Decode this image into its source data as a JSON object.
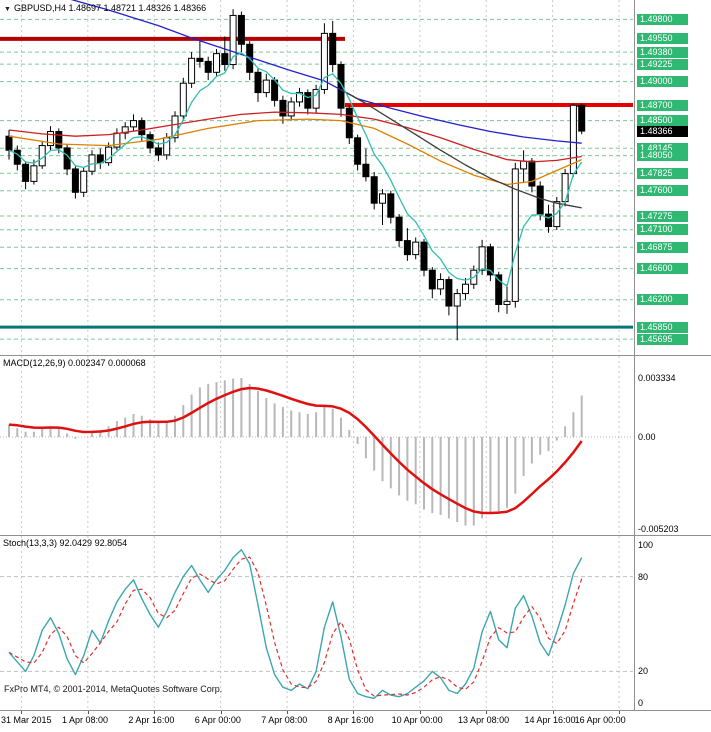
{
  "header": {
    "title": "GBPUSD,H4 1.48697 1.48721 1.48326 1.48366",
    "symbol": "GBPUSD",
    "timeframe": "H4",
    "open": "1.48697",
    "high": "1.48721",
    "low": "1.48326",
    "close": "1.48366"
  },
  "footer": {
    "copyright": "FxPro MT4, © 2001-2014, MetaQuotes Software Corp."
  },
  "time_axis": [
    "31 Mar 2015",
    "1 Apr 08:00",
    "2 Apr 16:00",
    "6 Apr 00:00",
    "7 Apr 08:00",
    "8 Apr 16:00",
    "10 Apr 00:00",
    "13 Apr 08:00",
    "14 Apr 16:00",
    "16 Apr 00:00"
  ],
  "chart_data": [
    {
      "type": "candlestick",
      "title": "GBPUSD,H4",
      "ylim": [
        1.4553,
        1.4992
      ],
      "grid_color": "#C9C9C9",
      "up_color": "#FFFFFF",
      "down_color": "#000000",
      "current_price": "1.48366",
      "candles": [
        [
          1.483,
          1.4838,
          1.48,
          1.4812
        ],
        [
          1.4812,
          1.4818,
          1.4786,
          1.4794
        ],
        [
          1.4794,
          1.4798,
          1.4762,
          1.4772
        ],
        [
          1.4772,
          1.48,
          1.4768,
          1.4792
        ],
        [
          1.4792,
          1.4824,
          1.4788,
          1.4818
        ],
        [
          1.4818,
          1.4843,
          1.4812,
          1.4836
        ],
        [
          1.4836,
          1.484,
          1.4808,
          1.4815
        ],
        [
          1.4815,
          1.482,
          1.478,
          1.4788
        ],
        [
          1.4788,
          1.4792,
          1.475,
          1.4758
        ],
        [
          1.4758,
          1.479,
          1.4752,
          1.4785
        ],
        [
          1.4785,
          1.4812,
          1.478,
          1.4806
        ],
        [
          1.4806,
          1.4814,
          1.4788,
          1.4796
        ],
        [
          1.4796,
          1.4822,
          1.4792,
          1.4816
        ],
        [
          1.4816,
          1.484,
          1.4812,
          1.4834
        ],
        [
          1.4834,
          1.4848,
          1.4826,
          1.4842
        ],
        [
          1.4842,
          1.4858,
          1.4836,
          1.485
        ],
        [
          1.485,
          1.4854,
          1.4824,
          1.4832
        ],
        [
          1.4832,
          1.4836,
          1.4808,
          1.4815
        ],
        [
          1.4815,
          1.4822,
          1.4798,
          1.4806
        ],
        [
          1.4806,
          1.4834,
          1.48,
          1.4828
        ],
        [
          1.4828,
          1.4862,
          1.4822,
          1.4856
        ],
        [
          1.4856,
          1.4905,
          1.485,
          1.4898
        ],
        [
          1.4898,
          1.4938,
          1.4892,
          1.493
        ],
        [
          1.493,
          1.4952,
          1.4918,
          1.4926
        ],
        [
          1.4926,
          1.4932,
          1.4902,
          1.4912
        ],
        [
          1.4912,
          1.4942,
          1.4906,
          1.4936
        ],
        [
          1.4936,
          1.4958,
          1.4914,
          1.4922
        ],
        [
          1.4922,
          1.4993,
          1.4916,
          1.4985
        ],
        [
          1.4985,
          1.499,
          1.4938,
          1.4948
        ],
        [
          1.4948,
          1.4952,
          1.4902,
          1.4912
        ],
        [
          1.4912,
          1.4918,
          1.4874,
          1.4886
        ],
        [
          1.4886,
          1.491,
          1.488,
          1.4902
        ],
        [
          1.4902,
          1.4906,
          1.4868,
          1.4876
        ],
        [
          1.4876,
          1.4882,
          1.4846,
          1.4856
        ],
        [
          1.4856,
          1.488,
          1.485,
          1.4874
        ],
        [
          1.4874,
          1.4892,
          1.4868,
          1.4886
        ],
        [
          1.4886,
          1.489,
          1.4858,
          1.4866
        ],
        [
          1.4866,
          1.4896,
          1.486,
          1.489
        ],
        [
          1.489,
          1.4975,
          1.4884,
          1.4962
        ],
        [
          1.4962,
          1.4978,
          1.4912,
          1.4922
        ],
        [
          1.4922,
          1.4926,
          1.4855,
          1.4866
        ],
        [
          1.4866,
          1.487,
          1.482,
          1.4828
        ],
        [
          1.4828,
          1.4832,
          1.4786,
          1.4794
        ],
        [
          1.4794,
          1.4814,
          1.4772,
          1.4778
        ],
        [
          1.4778,
          1.4784,
          1.4736,
          1.4744
        ],
        [
          1.4744,
          1.4762,
          1.4716,
          1.4756
        ],
        [
          1.4756,
          1.476,
          1.4718,
          1.4726
        ],
        [
          1.4726,
          1.473,
          1.4688,
          1.4696
        ],
        [
          1.4696,
          1.4712,
          1.467,
          1.4678
        ],
        [
          1.4678,
          1.47,
          1.4672,
          1.4694
        ],
        [
          1.4694,
          1.4698,
          1.465,
          1.4658
        ],
        [
          1.4658,
          1.4662,
          1.4622,
          1.4634
        ],
        [
          1.4634,
          1.4654,
          1.4626,
          1.4646
        ],
        [
          1.4646,
          1.465,
          1.46,
          1.4612
        ],
        [
          1.4612,
          1.4634,
          1.4568,
          1.4628
        ],
        [
          1.4628,
          1.4648,
          1.462,
          1.464
        ],
        [
          1.464,
          1.4664,
          1.4634,
          1.4658
        ],
        [
          1.4658,
          1.4697,
          1.4652,
          1.4688
        ],
        [
          1.4688,
          1.4692,
          1.4644,
          1.4652
        ],
        [
          1.4652,
          1.4656,
          1.4604,
          1.4614
        ],
        [
          1.4614,
          1.464,
          1.4602,
          1.4618
        ],
        [
          1.4618,
          1.4796,
          1.461,
          1.4788
        ],
        [
          1.4788,
          1.4812,
          1.477,
          1.4798
        ],
        [
          1.4798,
          1.4802,
          1.4758,
          1.4766
        ],
        [
          1.4766,
          1.4772,
          1.4722,
          1.473
        ],
        [
          1.473,
          1.4742,
          1.4706,
          1.4714
        ],
        [
          1.4714,
          1.4752,
          1.471,
          1.4746
        ],
        [
          1.4746,
          1.4788,
          1.474,
          1.4782
        ],
        [
          1.4782,
          1.4872,
          1.4778,
          1.48697
        ],
        [
          1.48697,
          1.48721,
          1.48326,
          1.48366
        ]
      ],
      "price_levels": [
        {
          "label": "1.49800",
          "value": 1.498,
          "line": "dashed"
        },
        {
          "label": "1.49550",
          "value": 1.4955,
          "line": "resistance",
          "color": "#B40000",
          "frac": [
            0,
            0.545
          ]
        },
        {
          "label": "1.49380",
          "value": 1.4938,
          "line": "dashed"
        },
        {
          "label": "1.49225",
          "value": 1.49225,
          "line": "dashed"
        },
        {
          "label": "1.49000",
          "value": 1.49,
          "line": "dashed"
        },
        {
          "label": "1.48700",
          "value": 1.487,
          "line": "resistance",
          "color": "#E60000",
          "frac": [
            0.545,
            1
          ]
        },
        {
          "label": "1.48500",
          "value": 1.485,
          "line": "dashed"
        },
        {
          "label": "1.48366",
          "value": 1.48366,
          "line": "current"
        },
        {
          "label": "1.48145",
          "value": 1.48145,
          "line": "dashed"
        },
        {
          "label": "1.48050",
          "value": 1.4805,
          "line": "dashed"
        },
        {
          "label": "1.47825",
          "value": 1.47825,
          "line": "dashed"
        },
        {
          "label": "1.47600",
          "value": 1.476,
          "line": "dashed"
        },
        {
          "label": "1.47275",
          "value": 1.47275,
          "line": "dashed"
        },
        {
          "label": "1.47100",
          "value": 1.471,
          "line": "dashed"
        },
        {
          "label": "1.46875",
          "value": 1.46875,
          "line": "dashed"
        },
        {
          "label": "1.46600",
          "value": 1.466,
          "line": "dashed"
        },
        {
          "label": "1.46200",
          "value": 1.462,
          "line": "dashed"
        },
        {
          "label": "1.45850",
          "value": 1.4585,
          "line": "support",
          "color": "#007878"
        },
        {
          "label": "1.45695",
          "value": 1.45695,
          "line": "dashed"
        }
      ],
      "overlays": [
        {
          "name": "ma-blue",
          "color": "#2222CC",
          "points": [
            [
              0,
              1.503
            ],
            [
              6,
              1.501
            ],
            [
              12,
              1.4992
            ],
            [
              18,
              1.4972
            ],
            [
              22,
              1.4956
            ],
            [
              26,
              1.4942
            ],
            [
              30,
              1.4928
            ],
            [
              34,
              1.4914
            ],
            [
              38,
              1.4901
            ],
            [
              42,
              1.4878
            ],
            [
              46,
              1.4866
            ],
            [
              50,
              1.4855
            ],
            [
              54,
              1.4845
            ],
            [
              58,
              1.4836
            ],
            [
              62,
              1.4829
            ],
            [
              66,
              1.4824
            ],
            [
              69,
              1.4821
            ]
          ]
        },
        {
          "name": "ma-red",
          "color": "#CC2020",
          "points": [
            [
              0,
              1.4838
            ],
            [
              4,
              1.4833
            ],
            [
              8,
              1.483
            ],
            [
              12,
              1.4832
            ],
            [
              16,
              1.4838
            ],
            [
              20,
              1.4845
            ],
            [
              24,
              1.4852
            ],
            [
              28,
              1.4858
            ],
            [
              32,
              1.4861
            ],
            [
              36,
              1.486
            ],
            [
              40,
              1.4858
            ],
            [
              44,
              1.4852
            ],
            [
              48,
              1.4841
            ],
            [
              52,
              1.4828
            ],
            [
              56,
              1.4813
            ],
            [
              60,
              1.48
            ],
            [
              63,
              1.4797
            ],
            [
              66,
              1.4799
            ],
            [
              69,
              1.4804
            ]
          ]
        },
        {
          "name": "ma-orange",
          "color": "#E08000",
          "points": [
            [
              0,
              1.483
            ],
            [
              6,
              1.482
            ],
            [
              12,
              1.4818
            ],
            [
              18,
              1.4826
            ],
            [
              24,
              1.484
            ],
            [
              30,
              1.485
            ],
            [
              36,
              1.4852
            ],
            [
              40,
              1.485
            ],
            [
              44,
              1.484
            ],
            [
              48,
              1.482
            ],
            [
              52,
              1.4798
            ],
            [
              56,
              1.478
            ],
            [
              60,
              1.4768
            ],
            [
              63,
              1.4772
            ],
            [
              66,
              1.4786
            ],
            [
              69,
              1.48
            ]
          ]
        },
        {
          "name": "trend-black",
          "color": "#3C3C3C",
          "points": [
            [
              40,
              1.489
            ],
            [
              43,
              1.4872
            ],
            [
              46,
              1.4852
            ],
            [
              49,
              1.4832
            ],
            [
              52,
              1.4812
            ],
            [
              55,
              1.4793
            ],
            [
              58,
              1.4776
            ],
            [
              61,
              1.4762
            ],
            [
              64,
              1.475
            ],
            [
              66,
              1.4744
            ],
            [
              68,
              1.474
            ],
            [
              69,
              1.4738
            ]
          ]
        },
        {
          "name": "ma-cyan",
          "color": "#2FBFAF",
          "ema_period": 6
        }
      ]
    },
    {
      "type": "macd",
      "label": "MACD(12,26,9) 0.002347 0.000068",
      "params": [
        12,
        26,
        9
      ],
      "current_values": {
        "macd": "0.002347",
        "signal": "0.000068"
      },
      "signal_period": 9,
      "y_axis_labels": [
        {
          "text": "0.003334",
          "value": 0.003334
        },
        {
          "text": "0.00",
          "value": 0
        },
        {
          "text": "-0.005203",
          "value": -0.005203
        }
      ],
      "colors": {
        "histogram": "#B8B8B8",
        "signal": "#E01010"
      },
      "values": [
        0.0007,
        0.0005,
        0.0003,
        0.0003,
        0.0005,
        0.0006,
        0.0005,
        0.0002,
        -0.0001,
        0.0,
        0.0003,
        0.0004,
        0.0006,
        0.0009,
        0.0011,
        0.0013,
        0.0012,
        0.001,
        0.0008,
        0.0009,
        0.0012,
        0.0018,
        0.0024,
        0.0028,
        0.003,
        0.0031,
        0.0032,
        0.0033,
        0.003334,
        0.003,
        0.0026,
        0.0022,
        0.0019,
        0.0017,
        0.0015,
        0.0014,
        0.0013,
        0.0014,
        0.0017,
        0.0016,
        0.0011,
        0.0004,
        -0.0004,
        -0.0012,
        -0.0019,
        -0.0025,
        -0.0029,
        -0.0033,
        -0.0036,
        -0.0038,
        -0.0041,
        -0.0043,
        -0.0044,
        -0.0046,
        -0.0048,
        -0.005,
        -0.005,
        -0.0046,
        -0.0043,
        -0.0042,
        -0.004,
        -0.0032,
        -0.0022,
        -0.0015,
        -0.001,
        -0.0008,
        -0.0002,
        0.0006,
        0.0014,
        0.002347
      ]
    },
    {
      "type": "stochastic",
      "label": "Stoch(13,3,3) 92.0429 92.8054",
      "params": [
        13,
        3,
        3
      ],
      "current_values": {
        "k": "92.0429",
        "d": "92.8054"
      },
      "d_period": 3,
      "ylim": [
        0,
        100
      ],
      "levels": [
        80,
        20
      ],
      "y_axis_labels": [
        {
          "text": "100",
          "value": 100
        },
        {
          "text": "80",
          "value": 80
        },
        {
          "text": "20",
          "value": 20
        },
        {
          "text": "0",
          "value": 0
        }
      ],
      "colors": {
        "k": "#3BA7AE",
        "d": "#E03030"
      },
      "k_values": [
        32,
        26,
        20,
        30,
        46,
        54,
        44,
        28,
        18,
        30,
        46,
        38,
        52,
        64,
        72,
        78,
        66,
        56,
        48,
        58,
        70,
        80,
        87,
        78,
        70,
        78,
        84,
        92,
        97,
        88,
        62,
        35,
        18,
        10,
        8,
        12,
        9,
        20,
        48,
        64,
        42,
        15,
        6,
        4,
        3,
        8,
        5,
        4,
        6,
        10,
        14,
        20,
        16,
        8,
        6,
        12,
        22,
        45,
        58,
        40,
        35,
        60,
        68,
        55,
        38,
        30,
        45,
        62,
        82,
        92.0429
      ]
    }
  ]
}
